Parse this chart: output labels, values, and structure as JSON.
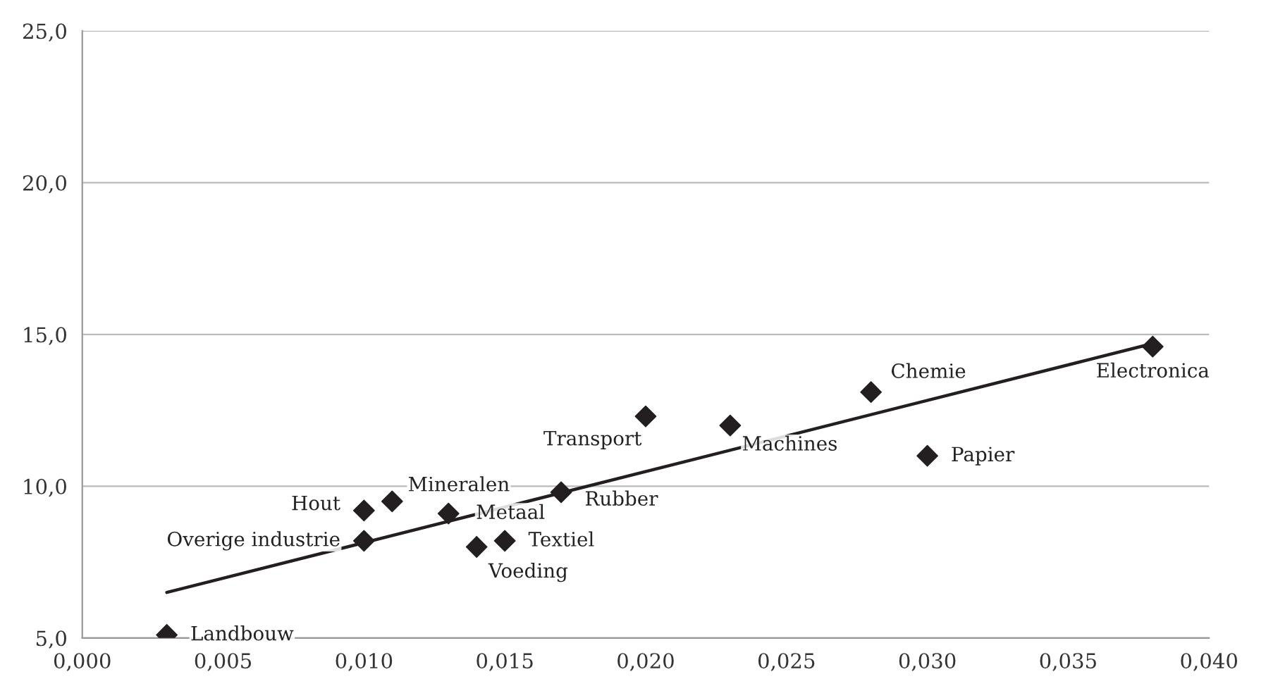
{
  "chart_data": {
    "type": "scatter",
    "grid": "y",
    "legend": false,
    "xlim": [
      0,
      0.04
    ],
    "ylim": [
      5,
      25
    ],
    "xticks": [
      {
        "value": 0,
        "label": "0,000"
      },
      {
        "value": 0.005,
        "label": "0,005"
      },
      {
        "value": 0.01,
        "label": "0,010"
      },
      {
        "value": 0.015,
        "label": "0,015"
      },
      {
        "value": 0.02,
        "label": "0,020"
      },
      {
        "value": 0.025,
        "label": "0,025"
      },
      {
        "value": 0.03,
        "label": "0,030"
      },
      {
        "value": 0.035,
        "label": "0,035"
      },
      {
        "value": 0.04,
        "label": "0,040"
      }
    ],
    "yticks": [
      {
        "value": 5,
        "label": "5,0"
      },
      {
        "value": 10,
        "label": "10,0"
      },
      {
        "value": 15,
        "label": "15,0"
      },
      {
        "value": 20,
        "label": "20,0"
      },
      {
        "value": 25,
        "label": "25,0"
      }
    ],
    "series": [
      {
        "marker": "diamond",
        "color": "#231f20",
        "x": [
          0.003,
          0.01,
          0.01,
          0.011,
          0.013,
          0.014,
          0.015,
          0.017,
          0.02,
          0.023,
          0.028,
          0.03,
          0.038
        ],
        "values": [
          5.1,
          8.2,
          9.2,
          9.5,
          9.1,
          8.0,
          8.2,
          9.8,
          12.3,
          12.0,
          13.1,
          11.0,
          14.6
        ]
      },
      {
        "type": "line",
        "color": "#231f20",
        "x": [
          0.003,
          0.038
        ],
        "values": [
          6.5,
          14.7
        ]
      }
    ],
    "annotations": [
      {
        "text": "Landbouw",
        "x": 0.003,
        "y": 5.1
      },
      {
        "text": "Overige industrie",
        "x": 0.01,
        "y": 8.2
      },
      {
        "text": "Hout",
        "x": 0.01,
        "y": 9.2
      },
      {
        "text": "Mineralen",
        "x": 0.011,
        "y": 9.5
      },
      {
        "text": "Metaal",
        "x": 0.013,
        "y": 9.1
      },
      {
        "text": "Voeding",
        "x": 0.014,
        "y": 8.0
      },
      {
        "text": "Textiel",
        "x": 0.015,
        "y": 8.2
      },
      {
        "text": "Rubber",
        "x": 0.017,
        "y": 9.8
      },
      {
        "text": "Transport",
        "x": 0.02,
        "y": 12.3
      },
      {
        "text": "Machines",
        "x": 0.023,
        "y": 12.0
      },
      {
        "text": "Chemie",
        "x": 0.028,
        "y": 13.1
      },
      {
        "text": "Papier",
        "x": 0.03,
        "y": 11.0
      },
      {
        "text": "Electronica",
        "x": 0.038,
        "y": 14.6
      }
    ]
  }
}
